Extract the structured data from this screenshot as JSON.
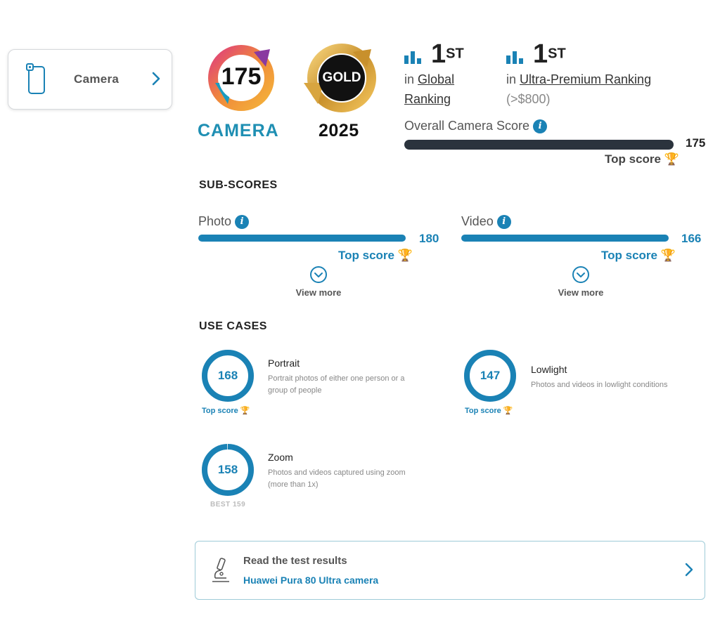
{
  "sidebar": {
    "item_label": "Camera",
    "icon": "phone-camera-icon"
  },
  "badges": {
    "camera_score": "175",
    "camera_label": "CAMERA",
    "award_label": "GOLD",
    "award_year": "2025"
  },
  "rankings": [
    {
      "position": "1",
      "suffix": "ST",
      "prefix": "in",
      "link": "Global Ranking",
      "sub": ""
    },
    {
      "position": "1",
      "suffix": "ST",
      "prefix": "in",
      "link": "Ultra-Premium Ranking",
      "sub": "(>$800)"
    }
  ],
  "overall": {
    "label": "Overall Camera Score",
    "value": "175",
    "top_label": "Top score"
  },
  "subscores": {
    "title": "SUB-SCORES",
    "items": [
      {
        "label": "Photo",
        "value": "180",
        "top_label": "Top score",
        "view_more": "View more"
      },
      {
        "label": "Video",
        "value": "166",
        "top_label": "Top score",
        "view_more": "View more"
      }
    ]
  },
  "usecases": {
    "title": "USE CASES",
    "items": [
      {
        "value": "168",
        "fraction": 1.0,
        "title": "Portrait",
        "desc_line1": "Portrait photos of either one person or a",
        "desc_line2": "group of people",
        "footer": "Top score"
      },
      {
        "value": "147",
        "fraction": 1.0,
        "title": "Lowlight",
        "desc_line1": "Photos and videos in lowlight conditions",
        "desc_line2": "",
        "footer": "Top score"
      },
      {
        "value": "158",
        "fraction": 0.994,
        "title": "Zoom",
        "desc_line1": "Photos and videos captured using zoom",
        "desc_line2": "(more than 1x)",
        "footer": "BEST 159"
      }
    ]
  },
  "results": {
    "title": "Read the test results",
    "link": "Huawei Pura 80 Ultra camera"
  },
  "colors": {
    "accent": "#1a82b5",
    "dark_bar": "#2b333d",
    "gold": "#e8a820"
  }
}
